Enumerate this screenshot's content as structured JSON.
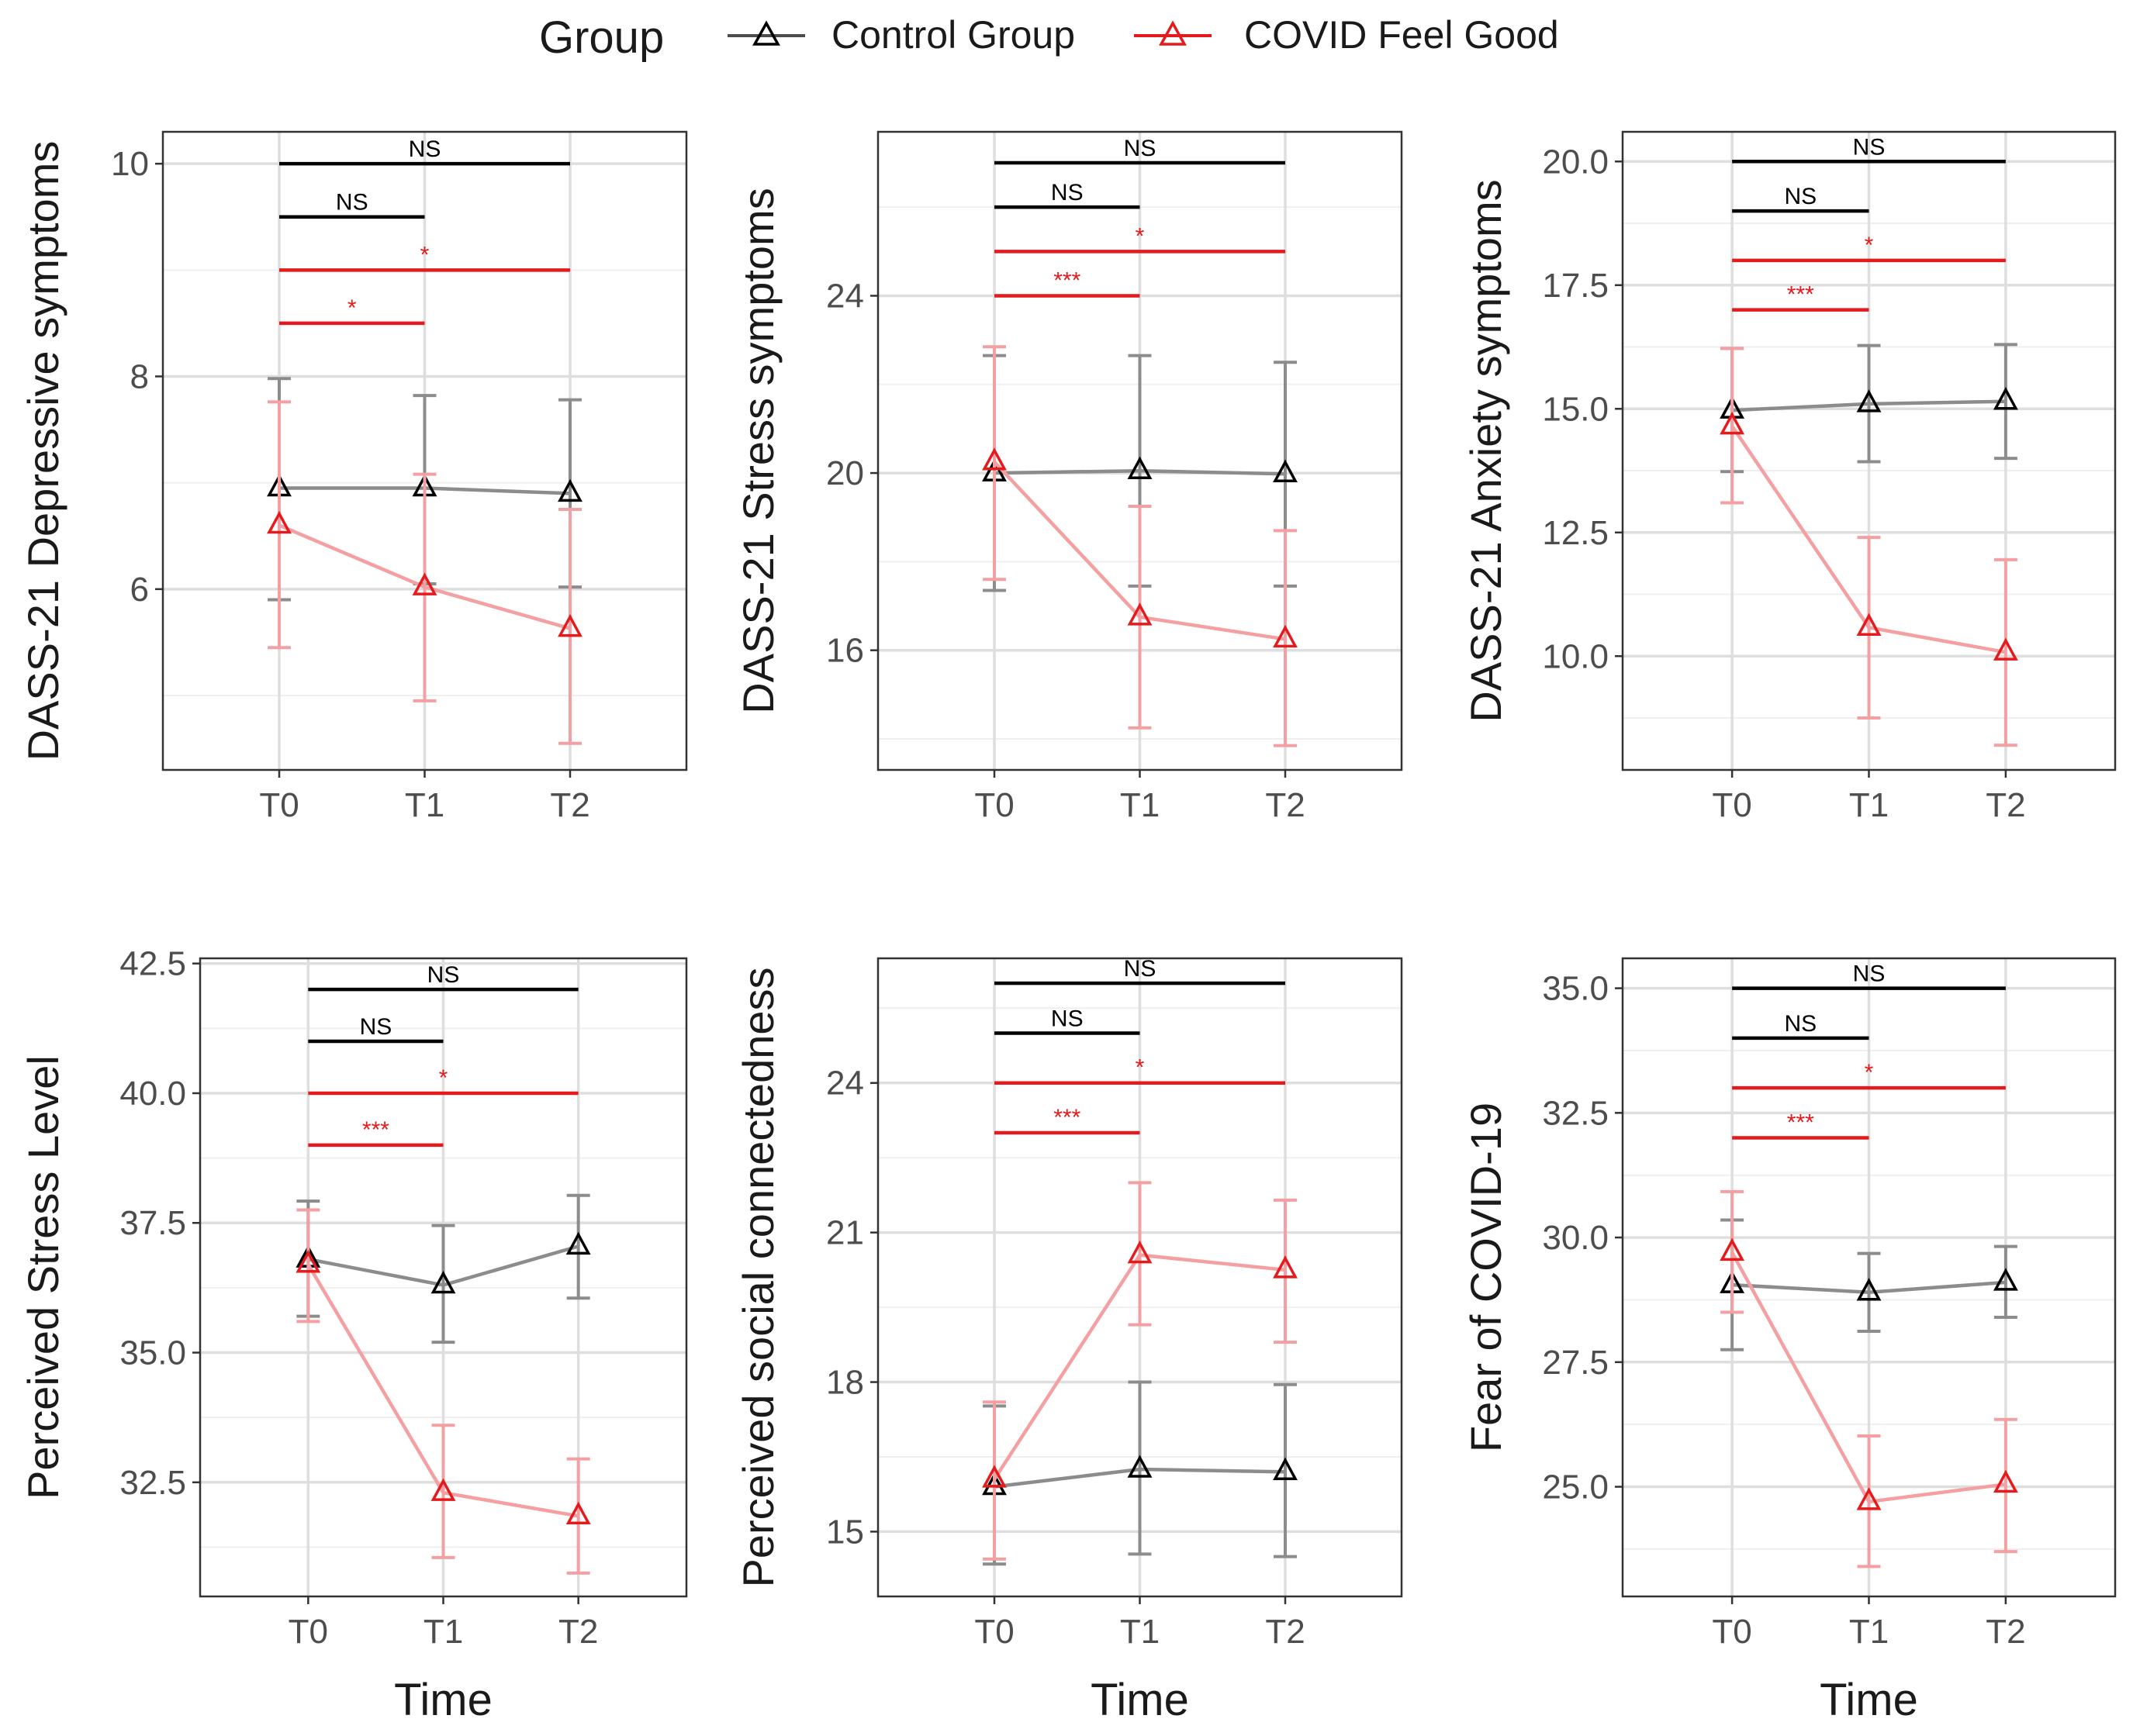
{
  "legend": {
    "title": "Group",
    "items": [
      {
        "label": "Control Group",
        "color": "#4d4d4d"
      },
      {
        "label": "COVID Feel Good",
        "color": "#e41a1c"
      }
    ]
  },
  "colors": {
    "control": "#4d4d4d",
    "control_line": "#8c8c8c",
    "covid": "#e41a1c",
    "covid_line": "#f4a0a2",
    "grid_major": "#dedede",
    "grid_minor": "#efefef",
    "bracket_ns": "#000000",
    "bracket_sig": "#e41a1c"
  },
  "x_axis_title": "Time",
  "chart_data": [
    {
      "type": "line",
      "ylabel": "DASS-21 Depressive symptoms",
      "x": [
        "T0",
        "T1",
        "T2"
      ],
      "ylim": [
        4.3,
        10.3
      ],
      "yticks": [
        6,
        8,
        10
      ],
      "ytick_labels": [
        "6",
        "8",
        "10"
      ],
      "series": [
        {
          "name": "Control Group",
          "values": [
            6.95,
            6.95,
            6.9
          ],
          "lower": [
            5.9,
            6.05,
            6.02
          ],
          "upper": [
            7.98,
            7.82,
            7.78
          ]
        },
        {
          "name": "COVID Feel Good",
          "values": [
            6.6,
            6.02,
            5.63
          ],
          "lower": [
            5.45,
            4.95,
            4.55
          ],
          "upper": [
            7.76,
            7.08,
            6.75
          ]
        }
      ],
      "brackets": [
        {
          "from": "T0",
          "to": "T2",
          "y": 10.0,
          "label": "NS",
          "group": "Control Group"
        },
        {
          "from": "T0",
          "to": "T1",
          "y": 9.5,
          "label": "NS",
          "group": "Control Group"
        },
        {
          "from": "T0",
          "to": "T2",
          "y": 9.0,
          "label": "*",
          "group": "COVID Feel Good"
        },
        {
          "from": "T0",
          "to": "T1",
          "y": 8.5,
          "label": "*",
          "group": "COVID Feel Good"
        }
      ]
    },
    {
      "type": "line",
      "ylabel": "DASS-21 Stress symptoms",
      "x": [
        "T0",
        "T1",
        "T2"
      ],
      "ylim": [
        13.3,
        27.7
      ],
      "yticks": [
        16,
        20,
        24
      ],
      "ytick_labels": [
        "16",
        "20",
        "24"
      ],
      "series": [
        {
          "name": "Control Group",
          "values": [
            20.0,
            20.05,
            19.98
          ],
          "lower": [
            17.35,
            17.45,
            17.45
          ],
          "upper": [
            22.65,
            22.65,
            22.5
          ]
        },
        {
          "name": "COVID Feel Good",
          "values": [
            20.25,
            16.75,
            16.25
          ],
          "lower": [
            17.6,
            14.25,
            13.85
          ],
          "upper": [
            22.85,
            19.25,
            18.7
          ]
        }
      ],
      "brackets": [
        {
          "from": "T0",
          "to": "T2",
          "y": 27.0,
          "label": "NS",
          "group": "Control Group"
        },
        {
          "from": "T0",
          "to": "T1",
          "y": 26.0,
          "label": "NS",
          "group": "Control Group"
        },
        {
          "from": "T0",
          "to": "T2",
          "y": 25.0,
          "label": "*",
          "group": "COVID Feel Good"
        },
        {
          "from": "T0",
          "to": "T1",
          "y": 24.0,
          "label": "***",
          "group": "COVID Feel Good"
        }
      ]
    },
    {
      "type": "line",
      "ylabel": "DASS-21 Anxiety symptoms",
      "x": [
        "T0",
        "T1",
        "T2"
      ],
      "ylim": [
        7.7,
        20.6
      ],
      "yticks": [
        10.0,
        12.5,
        15.0,
        17.5,
        20.0
      ],
      "ytick_labels": [
        "10.0",
        "12.5",
        "15.0",
        "17.5",
        "20.0"
      ],
      "series": [
        {
          "name": "Control Group",
          "values": [
            14.97,
            15.1,
            15.15
          ],
          "lower": [
            13.73,
            13.93,
            14.0
          ],
          "upper": [
            16.22,
            16.28,
            16.3
          ]
        },
        {
          "name": "COVID Feel Good",
          "values": [
            14.65,
            10.58,
            10.08
          ],
          "lower": [
            13.1,
            8.75,
            8.2
          ],
          "upper": [
            16.22,
            12.4,
            11.95
          ]
        }
      ],
      "brackets": [
        {
          "from": "T0",
          "to": "T2",
          "y": 20.0,
          "label": "NS",
          "group": "Control Group"
        },
        {
          "from": "T0",
          "to": "T1",
          "y": 19.0,
          "label": "NS",
          "group": "Control Group"
        },
        {
          "from": "T0",
          "to": "T2",
          "y": 18.0,
          "label": "*",
          "group": "COVID Feel Good"
        },
        {
          "from": "T0",
          "to": "T1",
          "y": 17.0,
          "label": "***",
          "group": "COVID Feel Good"
        }
      ]
    },
    {
      "type": "line",
      "ylabel": "Perceived Stress Level",
      "x": [
        "T0",
        "T1",
        "T2"
      ],
      "ylim": [
        30.3,
        42.6
      ],
      "yticks": [
        32.5,
        35.0,
        37.5,
        40.0,
        42.5
      ],
      "ytick_labels": [
        "32.5",
        "35.0",
        "37.5",
        "40.0",
        "42.5"
      ],
      "series": [
        {
          "name": "Control Group",
          "values": [
            36.8,
            36.3,
            37.05
          ],
          "lower": [
            35.7,
            35.2,
            36.05
          ],
          "upper": [
            37.92,
            37.45,
            38.03
          ]
        },
        {
          "name": "COVID Feel Good",
          "values": [
            36.7,
            32.3,
            31.85
          ],
          "lower": [
            35.6,
            31.05,
            30.75
          ],
          "upper": [
            37.75,
            33.6,
            32.95
          ]
        }
      ],
      "brackets": [
        {
          "from": "T0",
          "to": "T2",
          "y": 42.0,
          "label": "NS",
          "group": "Control Group"
        },
        {
          "from": "T0",
          "to": "T1",
          "y": 41.0,
          "label": "NS",
          "group": "Control Group"
        },
        {
          "from": "T0",
          "to": "T2",
          "y": 40.0,
          "label": "*",
          "group": "COVID Feel Good"
        },
        {
          "from": "T0",
          "to": "T1",
          "y": 39.0,
          "label": "***",
          "group": "COVID Feel Good"
        }
      ]
    },
    {
      "type": "line",
      "ylabel": "Perceived social connectedness",
      "x": [
        "T0",
        "T1",
        "T2"
      ],
      "ylim": [
        13.7,
        26.5
      ],
      "yticks": [
        15,
        18,
        21,
        24
      ],
      "ytick_labels": [
        "15",
        "18",
        "21",
        "24"
      ],
      "series": [
        {
          "name": "Control Group",
          "values": [
            15.9,
            16.25,
            16.2
          ],
          "lower": [
            14.35,
            14.55,
            14.5
          ],
          "upper": [
            17.52,
            18.0,
            17.95
          ]
        },
        {
          "name": "COVID Feel Good",
          "values": [
            16.05,
            20.55,
            20.25
          ],
          "lower": [
            14.45,
            19.15,
            18.8
          ],
          "upper": [
            17.6,
            22.0,
            21.65
          ]
        }
      ],
      "brackets": [
        {
          "from": "T0",
          "to": "T2",
          "y": 26.0,
          "label": "NS",
          "group": "Control Group"
        },
        {
          "from": "T0",
          "to": "T1",
          "y": 25.0,
          "label": "NS",
          "group": "Control Group"
        },
        {
          "from": "T0",
          "to": "T2",
          "y": 24.0,
          "label": "*",
          "group": "COVID Feel Good"
        },
        {
          "from": "T0",
          "to": "T1",
          "y": 23.0,
          "label": "***",
          "group": "COVID Feel Good"
        }
      ]
    },
    {
      "type": "line",
      "ylabel": "Fear of COVID-19",
      "x": [
        "T0",
        "T1",
        "T2"
      ],
      "ylim": [
        22.8,
        35.6
      ],
      "yticks": [
        25.0,
        27.5,
        30.0,
        32.5,
        35.0
      ],
      "ytick_labels": [
        "25.0",
        "27.5",
        "30.0",
        "32.5",
        "35.0"
      ],
      "series": [
        {
          "name": "Control Group",
          "values": [
            29.05,
            28.9,
            29.1
          ],
          "lower": [
            27.75,
            28.12,
            28.4
          ],
          "upper": [
            30.35,
            29.68,
            29.82
          ]
        },
        {
          "name": "COVID Feel Good",
          "values": [
            29.7,
            24.7,
            25.05
          ],
          "lower": [
            28.5,
            23.4,
            23.7
          ],
          "upper": [
            30.92,
            26.02,
            26.35
          ]
        }
      ],
      "brackets": [
        {
          "from": "T0",
          "to": "T2",
          "y": 35.0,
          "label": "NS",
          "group": "Control Group"
        },
        {
          "from": "T0",
          "to": "T1",
          "y": 34.0,
          "label": "NS",
          "group": "Control Group"
        },
        {
          "from": "T0",
          "to": "T2",
          "y": 33.0,
          "label": "*",
          "group": "COVID Feel Good"
        },
        {
          "from": "T0",
          "to": "T1",
          "y": 32.0,
          "label": "***",
          "group": "COVID Feel Good"
        }
      ]
    }
  ]
}
